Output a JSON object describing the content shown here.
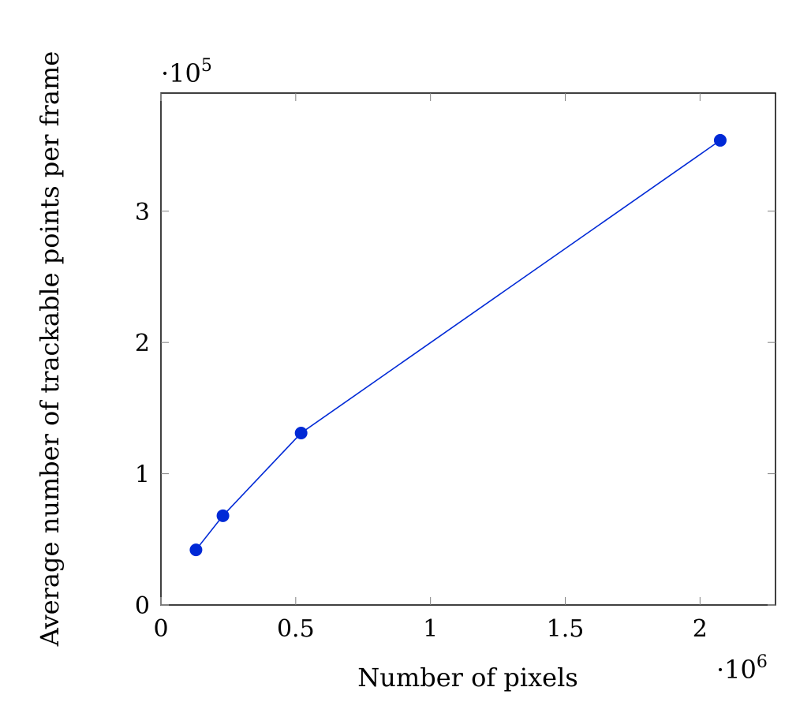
{
  "chart_data": {
    "type": "line",
    "title": "",
    "xlabel": "Number of pixels",
    "ylabel": "Average number of trackable points per frame",
    "x_multiplier": {
      "base": "·10",
      "exponent": "6"
    },
    "y_multiplier": {
      "base": "·10",
      "exponent": "5"
    },
    "xlim": [
      0,
      2280000
    ],
    "ylim": [
      0,
      390000
    ],
    "x_ticks": [
      0,
      500000,
      1000000,
      1500000,
      2000000
    ],
    "x_tick_labels": [
      "0",
      "0.5",
      "1",
      "1.5",
      "2"
    ],
    "y_ticks": [
      0,
      100000,
      200000,
      300000
    ],
    "y_tick_labels": [
      "0",
      "1",
      "2",
      "3"
    ],
    "grid": false,
    "series": [
      {
        "color": "#0029d6",
        "marker": "circle",
        "x": [
          130000,
          230000,
          520000,
          2075000
        ],
        "y": [
          42000,
          68000,
          131000,
          354000
        ]
      }
    ]
  }
}
